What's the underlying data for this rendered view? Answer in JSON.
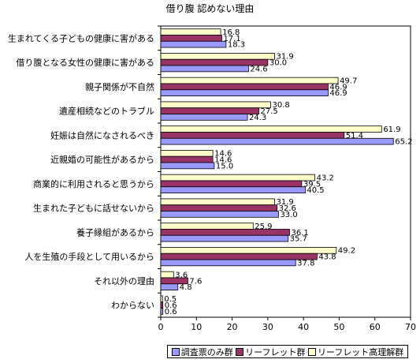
{
  "chart_data": {
    "type": "bar",
    "orientation": "horizontal",
    "title": "借り腹 認めない理由",
    "categories": [
      "生まれてくる子どもの健康に害がある",
      "借り腹となる女性の健康に害がある",
      "親子関係が不自然",
      "遺産相続などのトラブル",
      "妊娠は自然になされるべき",
      "近親婚の可能性があるから",
      "商業的に利用されると思うから",
      "生まれた子どもに話せないから",
      "養子縁組があるから",
      "人を生殖の手段として用いるから",
      "それ以外の理由",
      "わからない"
    ],
    "series": [
      {
        "name": "リーフレット高理解群",
        "color": "#ffffcc",
        "values": [
          16.8,
          31.9,
          49.7,
          30.8,
          61.9,
          14.6,
          43.2,
          31.9,
          25.9,
          49.2,
          3.6,
          0.5
        ]
      },
      {
        "name": "リーフレット群",
        "color": "#993366",
        "values": [
          17.1,
          30.0,
          46.9,
          27.5,
          51.4,
          14.6,
          39.5,
          32.6,
          36.1,
          43.8,
          7.6,
          0.6
        ]
      },
      {
        "name": "調査票のみ群",
        "color": "#9999ff",
        "values": [
          18.3,
          24.6,
          46.9,
          24.3,
          65.2,
          15.0,
          40.5,
          33.0,
          35.7,
          37.8,
          4.8,
          0.6
        ]
      }
    ],
    "xlim": [
      0,
      70
    ],
    "xticks": [
      0,
      10,
      20,
      30,
      40,
      50,
      60,
      70
    ],
    "legend_order": [
      "調査票のみ群",
      "リーフレット群",
      "リーフレット高理解群"
    ],
    "legend_position": "bottom",
    "grid": false
  }
}
